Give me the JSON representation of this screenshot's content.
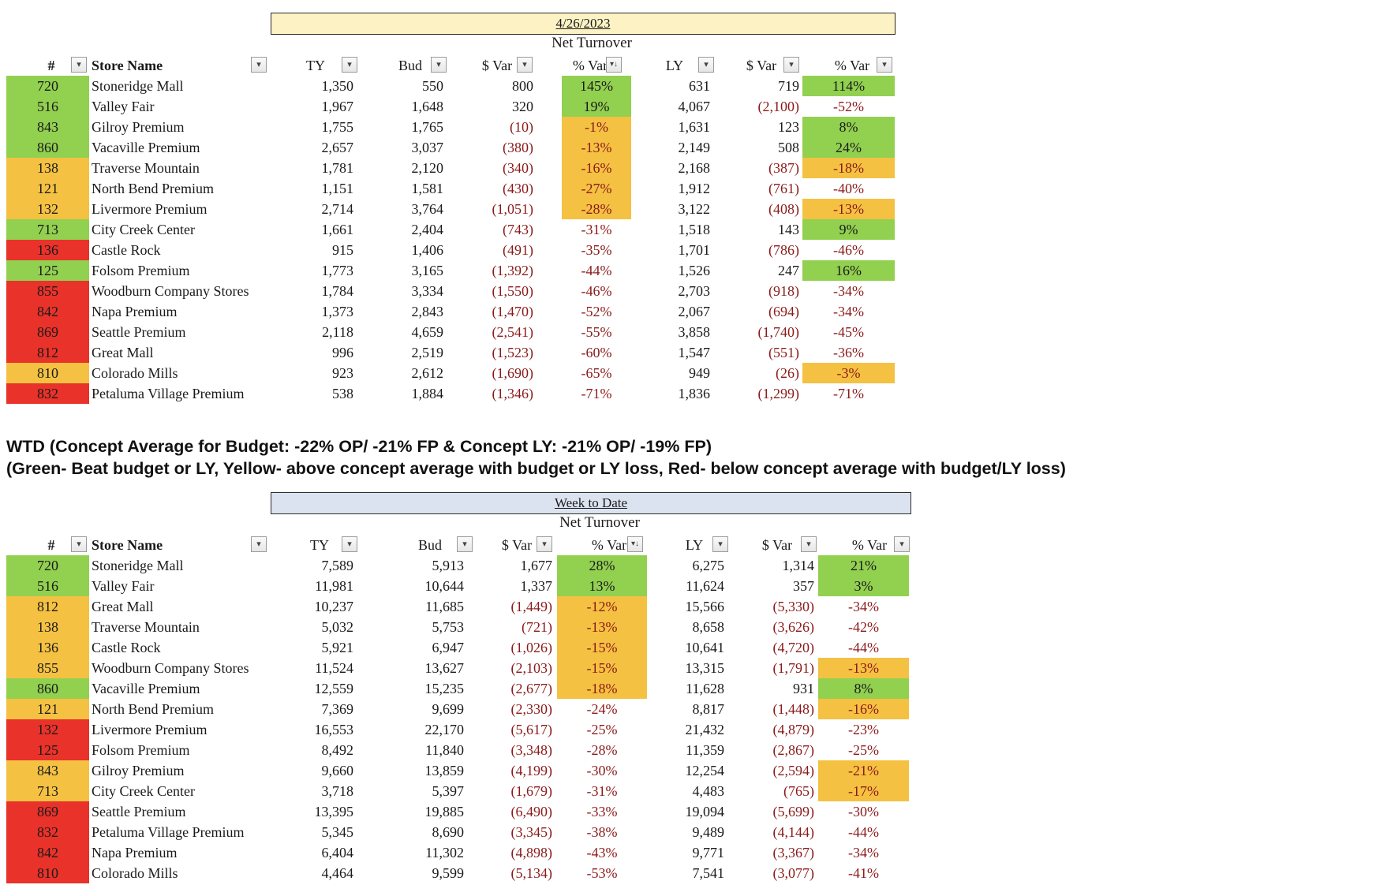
{
  "colors": {
    "green": "#92d050",
    "yellow": "#f4c142",
    "red": "#e8322a",
    "neg": "#8b1a1a"
  },
  "legend": {
    "line1": "WTD (Concept Average for Budget: -22% OP/ -21% FP & Concept LY: -21% OP/ -19% FP)",
    "line2": "(Green- Beat budget or LY, Yellow- above concept average with budget or LY loss, Red- below concept average with budget/LY loss)"
  },
  "tables": [
    {
      "title": "4/26/2023",
      "subtitle": "Net Turnover",
      "title_bg": "#fdf2c4",
      "headers": {
        "id": "#",
        "name": "Store Name",
        "ty": "TY",
        "bud": "Bud",
        "svar": "$ Var",
        "pvar": "% Var",
        "ly": "LY",
        "lysvar": "$ Var",
        "lypvar": "% Var"
      },
      "rows": [
        {
          "id": "720",
          "name": "Stoneridge Mall",
          "ty": "1,350",
          "bud": "550",
          "svar": "800",
          "pvar": "145%",
          "ly": "631",
          "lysvar": "719",
          "lypvar": "114%",
          "idc": "green",
          "pc": "green",
          "lpc": "green"
        },
        {
          "id": "516",
          "name": "Valley Fair",
          "ty": "1,967",
          "bud": "1,648",
          "svar": "320",
          "pvar": "19%",
          "ly": "4,067",
          "lysvar": "(2,100)",
          "lypvar": "-52%",
          "idc": "green",
          "pc": "green",
          "lpc": ""
        },
        {
          "id": "843",
          "name": "Gilroy Premium",
          "ty": "1,755",
          "bud": "1,765",
          "svar": "(10)",
          "pvar": "-1%",
          "ly": "1,631",
          "lysvar": "123",
          "lypvar": "8%",
          "idc": "green",
          "pc": "yellow",
          "lpc": "green"
        },
        {
          "id": "860",
          "name": "Vacaville Premium",
          "ty": "2,657",
          "bud": "3,037",
          "svar": "(380)",
          "pvar": "-13%",
          "ly": "2,149",
          "lysvar": "508",
          "lypvar": "24%",
          "idc": "green",
          "pc": "yellow",
          "lpc": "green"
        },
        {
          "id": "138",
          "name": "Traverse Mountain",
          "ty": "1,781",
          "bud": "2,120",
          "svar": "(340)",
          "pvar": "-16%",
          "ly": "2,168",
          "lysvar": "(387)",
          "lypvar": "-18%",
          "idc": "yellow",
          "pc": "yellow",
          "lpc": "yellow"
        },
        {
          "id": "121",
          "name": "North Bend Premium",
          "ty": "1,151",
          "bud": "1,581",
          "svar": "(430)",
          "pvar": "-27%",
          "ly": "1,912",
          "lysvar": "(761)",
          "lypvar": "-40%",
          "idc": "yellow",
          "pc": "yellow",
          "lpc": ""
        },
        {
          "id": "132",
          "name": "Livermore Premium",
          "ty": "2,714",
          "bud": "3,764",
          "svar": "(1,051)",
          "pvar": "-28%",
          "ly": "3,122",
          "lysvar": "(408)",
          "lypvar": "-13%",
          "idc": "yellow",
          "pc": "yellow",
          "lpc": "yellow"
        },
        {
          "id": "713",
          "name": "City Creek Center",
          "ty": "1,661",
          "bud": "2,404",
          "svar": "(743)",
          "pvar": "-31%",
          "ly": "1,518",
          "lysvar": "143",
          "lypvar": "9%",
          "idc": "green",
          "pc": "",
          "lpc": "green"
        },
        {
          "id": "136",
          "name": "Castle Rock",
          "ty": "915",
          "bud": "1,406",
          "svar": "(491)",
          "pvar": "-35%",
          "ly": "1,701",
          "lysvar": "(786)",
          "lypvar": "-46%",
          "idc": "red",
          "pc": "",
          "lpc": ""
        },
        {
          "id": "125",
          "name": "Folsom Premium",
          "ty": "1,773",
          "bud": "3,165",
          "svar": "(1,392)",
          "pvar": "-44%",
          "ly": "1,526",
          "lysvar": "247",
          "lypvar": "16%",
          "idc": "green",
          "pc": "",
          "lpc": "green"
        },
        {
          "id": "855",
          "name": "Woodburn Company Stores",
          "ty": "1,784",
          "bud": "3,334",
          "svar": "(1,550)",
          "pvar": "-46%",
          "ly": "2,703",
          "lysvar": "(918)",
          "lypvar": "-34%",
          "idc": "red",
          "pc": "",
          "lpc": ""
        },
        {
          "id": "842",
          "name": "Napa Premium",
          "ty": "1,373",
          "bud": "2,843",
          "svar": "(1,470)",
          "pvar": "-52%",
          "ly": "2,067",
          "lysvar": "(694)",
          "lypvar": "-34%",
          "idc": "red",
          "pc": "",
          "lpc": ""
        },
        {
          "id": "869",
          "name": "Seattle Premium",
          "ty": "2,118",
          "bud": "4,659",
          "svar": "(2,541)",
          "pvar": "-55%",
          "ly": "3,858",
          "lysvar": "(1,740)",
          "lypvar": "-45%",
          "idc": "red",
          "pc": "",
          "lpc": ""
        },
        {
          "id": "812",
          "name": "Great Mall",
          "ty": "996",
          "bud": "2,519",
          "svar": "(1,523)",
          "pvar": "-60%",
          "ly": "1,547",
          "lysvar": "(551)",
          "lypvar": "-36%",
          "idc": "red",
          "pc": "",
          "lpc": ""
        },
        {
          "id": "810",
          "name": "Colorado Mills",
          "ty": "923",
          "bud": "2,612",
          "svar": "(1,690)",
          "pvar": "-65%",
          "ly": "949",
          "lysvar": "(26)",
          "lypvar": "-3%",
          "idc": "yellow",
          "pc": "",
          "lpc": "yellow"
        },
        {
          "id": "832",
          "name": "Petaluma Village Premium",
          "ty": "538",
          "bud": "1,884",
          "svar": "(1,346)",
          "pvar": "-71%",
          "ly": "1,836",
          "lysvar": "(1,299)",
          "lypvar": "-71%",
          "idc": "red",
          "pc": "",
          "lpc": ""
        }
      ]
    },
    {
      "title": "Week to Date",
      "subtitle": "Net Turnover",
      "title_bg": "#dce3f0",
      "headers": {
        "id": "#",
        "name": "Store Name",
        "ty": "TY",
        "bud": "Bud",
        "svar": "$ Var",
        "pvar": "% Var",
        "ly": "LY",
        "lysvar": "$ Var",
        "lypvar": "% Var"
      },
      "rows": [
        {
          "id": "720",
          "name": "Stoneridge Mall",
          "ty": "7,589",
          "bud": "5,913",
          "svar": "1,677",
          "pvar": "28%",
          "ly": "6,275",
          "lysvar": "1,314",
          "lypvar": "21%",
          "idc": "green",
          "pc": "green",
          "lpc": "green"
        },
        {
          "id": "516",
          "name": "Valley Fair",
          "ty": "11,981",
          "bud": "10,644",
          "svar": "1,337",
          "pvar": "13%",
          "ly": "11,624",
          "lysvar": "357",
          "lypvar": "3%",
          "idc": "green",
          "pc": "green",
          "lpc": "green"
        },
        {
          "id": "812",
          "name": "Great Mall",
          "ty": "10,237",
          "bud": "11,685",
          "svar": "(1,449)",
          "pvar": "-12%",
          "ly": "15,566",
          "lysvar": "(5,330)",
          "lypvar": "-34%",
          "idc": "yellow",
          "pc": "yellow",
          "lpc": ""
        },
        {
          "id": "138",
          "name": "Traverse Mountain",
          "ty": "5,032",
          "bud": "5,753",
          "svar": "(721)",
          "pvar": "-13%",
          "ly": "8,658",
          "lysvar": "(3,626)",
          "lypvar": "-42%",
          "idc": "yellow",
          "pc": "yellow",
          "lpc": ""
        },
        {
          "id": "136",
          "name": "Castle Rock",
          "ty": "5,921",
          "bud": "6,947",
          "svar": "(1,026)",
          "pvar": "-15%",
          "ly": "10,641",
          "lysvar": "(4,720)",
          "lypvar": "-44%",
          "idc": "yellow",
          "pc": "yellow",
          "lpc": ""
        },
        {
          "id": "855",
          "name": "Woodburn Company Stores",
          "ty": "11,524",
          "bud": "13,627",
          "svar": "(2,103)",
          "pvar": "-15%",
          "ly": "13,315",
          "lysvar": "(1,791)",
          "lypvar": "-13%",
          "idc": "yellow",
          "pc": "yellow",
          "lpc": "yellow"
        },
        {
          "id": "860",
          "name": "Vacaville Premium",
          "ty": "12,559",
          "bud": "15,235",
          "svar": "(2,677)",
          "pvar": "-18%",
          "ly": "11,628",
          "lysvar": "931",
          "lypvar": "8%",
          "idc": "green",
          "pc": "yellow",
          "lpc": "green"
        },
        {
          "id": "121",
          "name": "North Bend Premium",
          "ty": "7,369",
          "bud": "9,699",
          "svar": "(2,330)",
          "pvar": "-24%",
          "ly": "8,817",
          "lysvar": "(1,448)",
          "lypvar": "-16%",
          "idc": "yellow",
          "pc": "",
          "lpc": "yellow"
        },
        {
          "id": "132",
          "name": "Livermore Premium",
          "ty": "16,553",
          "bud": "22,170",
          "svar": "(5,617)",
          "pvar": "-25%",
          "ly": "21,432",
          "lysvar": "(4,879)",
          "lypvar": "-23%",
          "idc": "red",
          "pc": "",
          "lpc": ""
        },
        {
          "id": "125",
          "name": "Folsom Premium",
          "ty": "8,492",
          "bud": "11,840",
          "svar": "(3,348)",
          "pvar": "-28%",
          "ly": "11,359",
          "lysvar": "(2,867)",
          "lypvar": "-25%",
          "idc": "red",
          "pc": "",
          "lpc": ""
        },
        {
          "id": "843",
          "name": "Gilroy Premium",
          "ty": "9,660",
          "bud": "13,859",
          "svar": "(4,199)",
          "pvar": "-30%",
          "ly": "12,254",
          "lysvar": "(2,594)",
          "lypvar": "-21%",
          "idc": "yellow",
          "pc": "",
          "lpc": "yellow"
        },
        {
          "id": "713",
          "name": "City Creek Center",
          "ty": "3,718",
          "bud": "5,397",
          "svar": "(1,679)",
          "pvar": "-31%",
          "ly": "4,483",
          "lysvar": "(765)",
          "lypvar": "-17%",
          "idc": "yellow",
          "pc": "",
          "lpc": "yellow"
        },
        {
          "id": "869",
          "name": "Seattle Premium",
          "ty": "13,395",
          "bud": "19,885",
          "svar": "(6,490)",
          "pvar": "-33%",
          "ly": "19,094",
          "lysvar": "(5,699)",
          "lypvar": "-30%",
          "idc": "red",
          "pc": "",
          "lpc": ""
        },
        {
          "id": "832",
          "name": "Petaluma Village Premium",
          "ty": "5,345",
          "bud": "8,690",
          "svar": "(3,345)",
          "pvar": "-38%",
          "ly": "9,489",
          "lysvar": "(4,144)",
          "lypvar": "-44%",
          "idc": "red",
          "pc": "",
          "lpc": ""
        },
        {
          "id": "842",
          "name": "Napa Premium",
          "ty": "6,404",
          "bud": "11,302",
          "svar": "(4,898)",
          "pvar": "-43%",
          "ly": "9,771",
          "lysvar": "(3,367)",
          "lypvar": "-34%",
          "idc": "red",
          "pc": "",
          "lpc": ""
        },
        {
          "id": "810",
          "name": "Colorado Mills",
          "ty": "4,464",
          "bud": "9,599",
          "svar": "(5,134)",
          "pvar": "-53%",
          "ly": "7,541",
          "lysvar": "(3,077)",
          "lypvar": "-41%",
          "idc": "red",
          "pc": "",
          "lpc": ""
        }
      ]
    }
  ]
}
